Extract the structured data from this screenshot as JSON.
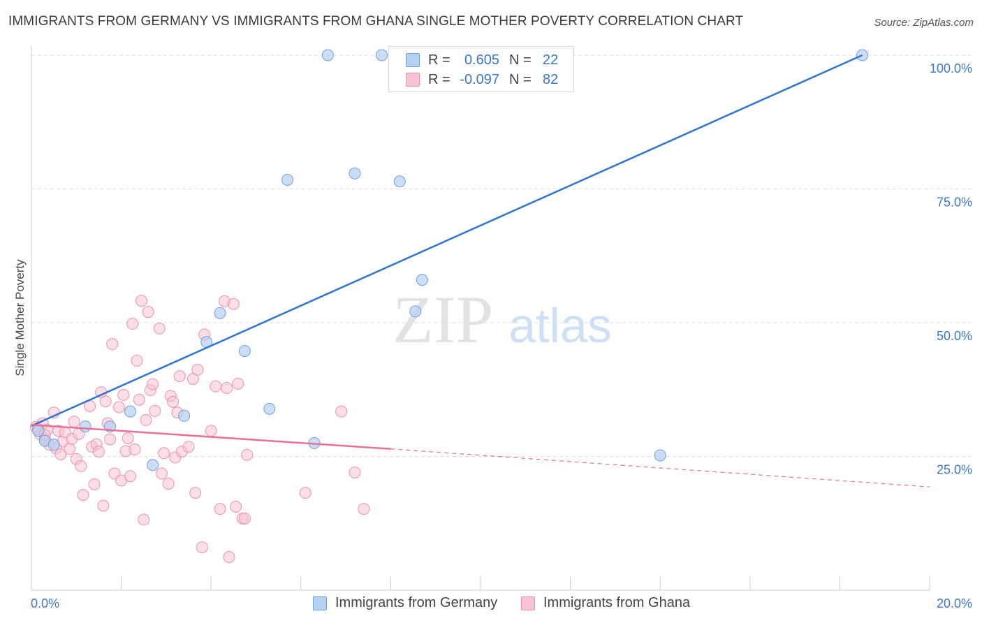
{
  "title": "IMMIGRANTS FROM GERMANY VS IMMIGRANTS FROM GHANA SINGLE MOTHER POVERTY CORRELATION CHART",
  "source": "Source: ZipAtlas.com",
  "watermark": {
    "zip": "ZIP",
    "atlas": "atlas"
  },
  "colors": {
    "germany_fill": "#b6d0f2",
    "germany_stroke": "#6f9fdc",
    "germany_line": "#2f74d0",
    "ghana_fill": "#f7c3d3",
    "ghana_stroke": "#ec92b0",
    "ghana_line": "#e8709a",
    "axis_label": "#3b78c8"
  },
  "legend": {
    "germany": {
      "r_label": "R =",
      "r_value": "0.605",
      "n_label": "N =",
      "n_value": "22"
    },
    "ghana": {
      "r_label": "R =",
      "r_value": "-0.097",
      "n_label": "N =",
      "n_value": "82"
    }
  },
  "bottom_legend": {
    "germany": "Immigrants from Germany",
    "ghana": "Immigrants from Ghana"
  },
  "chart_data": {
    "type": "scatter",
    "title": "IMMIGRANTS FROM GERMANY VS IMMIGRANTS FROM GHANA SINGLE MOTHER POVERTY CORRELATION CHART",
    "xlabel": "",
    "ylabel": "Single Mother Poverty",
    "xlim": [
      0,
      20
    ],
    "ylim": [
      0,
      102
    ],
    "x_tick_labels": [
      "0.0%",
      "20.0%"
    ],
    "y_ticks": [
      25,
      50,
      75,
      100
    ],
    "y_tick_labels": [
      "25.0%",
      "50.0%",
      "75.0%",
      "100.0%"
    ],
    "series": [
      {
        "name": "Immigrants from Germany",
        "points": [
          [
            0.15,
            29.8
          ],
          [
            0.3,
            27.9
          ],
          [
            0.5,
            27.2
          ],
          [
            1.2,
            30.6
          ],
          [
            1.75,
            30.6
          ],
          [
            2.2,
            33.4
          ],
          [
            2.7,
            23.4
          ],
          [
            3.4,
            32.6
          ],
          [
            3.9,
            46.4
          ],
          [
            4.2,
            51.8
          ],
          [
            4.75,
            44.7
          ],
          [
            5.3,
            33.9
          ],
          [
            5.7,
            76.7
          ],
          [
            6.3,
            27.5
          ],
          [
            6.6,
            100.0
          ],
          [
            7.2,
            77.9
          ],
          [
            7.8,
            100.0
          ],
          [
            8.2,
            76.4
          ],
          [
            8.55,
            52.1
          ],
          [
            8.7,
            58.0
          ],
          [
            14.0,
            25.2
          ],
          [
            18.5,
            100.0
          ]
        ],
        "trend": {
          "x": [
            0,
            18.5
          ],
          "y": [
            30.7,
            100.0
          ]
        }
      },
      {
        "name": "Immigrants from Ghana",
        "points": [
          [
            0.1,
            30.5
          ],
          [
            0.2,
            29.1
          ],
          [
            0.25,
            31.2
          ],
          [
            0.3,
            28.2
          ],
          [
            0.35,
            30.0
          ],
          [
            0.4,
            27.2
          ],
          [
            0.5,
            33.2
          ],
          [
            0.55,
            26.5
          ],
          [
            0.6,
            29.8
          ],
          [
            0.65,
            25.4
          ],
          [
            0.7,
            27.8
          ],
          [
            0.75,
            29.5
          ],
          [
            0.85,
            26.4
          ],
          [
            0.9,
            28.3
          ],
          [
            0.95,
            31.5
          ],
          [
            1.0,
            24.5
          ],
          [
            1.05,
            29.2
          ],
          [
            1.1,
            23.2
          ],
          [
            1.15,
            17.8
          ],
          [
            1.3,
            34.4
          ],
          [
            1.35,
            26.8
          ],
          [
            1.4,
            19.8
          ],
          [
            1.45,
            27.3
          ],
          [
            1.5,
            25.9
          ],
          [
            1.55,
            37.0
          ],
          [
            1.6,
            15.8
          ],
          [
            1.65,
            35.3
          ],
          [
            1.7,
            31.2
          ],
          [
            1.75,
            28.2
          ],
          [
            1.8,
            46.0
          ],
          [
            1.85,
            21.8
          ],
          [
            1.95,
            34.2
          ],
          [
            2.0,
            20.5
          ],
          [
            2.05,
            36.5
          ],
          [
            2.1,
            26.0
          ],
          [
            2.15,
            28.4
          ],
          [
            2.2,
            21.3
          ],
          [
            2.25,
            49.8
          ],
          [
            2.3,
            26.3
          ],
          [
            2.35,
            42.9
          ],
          [
            2.4,
            35.6
          ],
          [
            2.45,
            54.1
          ],
          [
            2.5,
            13.2
          ],
          [
            2.55,
            31.8
          ],
          [
            2.6,
            52.0
          ],
          [
            2.65,
            37.4
          ],
          [
            2.7,
            38.5
          ],
          [
            2.75,
            33.5
          ],
          [
            2.85,
            48.9
          ],
          [
            2.9,
            21.8
          ],
          [
            2.95,
            25.6
          ],
          [
            3.05,
            19.9
          ],
          [
            3.1,
            36.3
          ],
          [
            3.15,
            35.2
          ],
          [
            3.2,
            24.8
          ],
          [
            3.25,
            33.2
          ],
          [
            3.3,
            40.0
          ],
          [
            3.35,
            25.9
          ],
          [
            3.5,
            26.8
          ],
          [
            3.6,
            39.5
          ],
          [
            3.65,
            18.2
          ],
          [
            3.7,
            41.2
          ],
          [
            3.8,
            8.0
          ],
          [
            3.85,
            47.8
          ],
          [
            4.0,
            29.8
          ],
          [
            4.1,
            38.1
          ],
          [
            4.2,
            15.2
          ],
          [
            4.3,
            54.0
          ],
          [
            4.35,
            37.8
          ],
          [
            4.4,
            6.2
          ],
          [
            4.5,
            53.5
          ],
          [
            4.55,
            15.6
          ],
          [
            4.6,
            38.6
          ],
          [
            4.7,
            13.4
          ],
          [
            4.75,
            13.4
          ],
          [
            4.8,
            25.3
          ],
          [
            6.1,
            18.2
          ],
          [
            6.9,
            33.4
          ],
          [
            7.2,
            22.0
          ],
          [
            7.4,
            15.2
          ],
          [
            0.15,
            30.1
          ],
          [
            0.3,
            29.0
          ]
        ],
        "trend": {
          "x": [
            0,
            8.0,
            20.0
          ],
          "y": [
            30.9,
            26.4,
            19.3
          ],
          "solid_until": 8.0
        }
      }
    ]
  }
}
